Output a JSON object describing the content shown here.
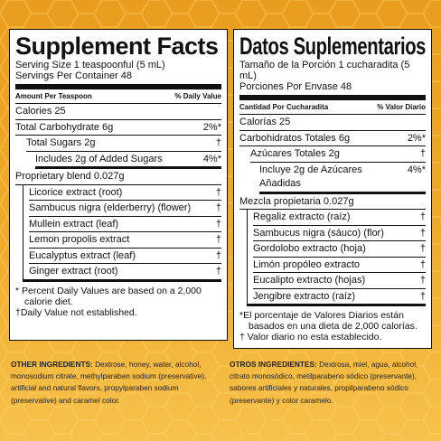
{
  "panels": [
    {
      "title": "Supplement Facts",
      "serving_size": "Serving Size 1 teaspoonful (5 mL)",
      "servings": "Servings Per Container 48",
      "header_left": "Amount Per Teaspoon",
      "header_right": "% Daily Value",
      "rows": [
        {
          "label": "Calories 25"
        },
        {
          "label": "Total Carbohydrate 6g",
          "dv": "2%*"
        },
        {
          "label": "Total Sugars 2g",
          "dv": "†"
        },
        {
          "label": "Includes 2g of Added Sugars",
          "dv": "4%*"
        }
      ],
      "blend": "Proprietary blend 0.027g",
      "blend_items": [
        {
          "label": "Licorice extract (root)",
          "dv": "†"
        },
        {
          "label": "Sambucus nigra (elderberry) (flower)",
          "dv": "†"
        },
        {
          "label": "Mullein extract (leaf)",
          "dv": "†"
        },
        {
          "label": "Lemon propolis extract",
          "dv": "†"
        },
        {
          "label": "Eucalyptus extract (leaf)",
          "dv": "†"
        },
        {
          "label": "Ginger extract (root)",
          "dv": "†"
        }
      ],
      "footnotes": [
        "* Percent Daily Values are based on a 2,000 calorie diet.",
        "†Daily Value not established."
      ]
    },
    {
      "title": "Datos Suplementarios",
      "serving_size": "Tamaño de la Porción 1 cucharadita (5 mL)",
      "servings": "Porciones Por Envase 48",
      "header_left": "Cantidad Por Cucharadita",
      "header_right": "% Valor Diario",
      "rows": [
        {
          "label": "Calorías 25"
        },
        {
          "label": "Carbohidratos Totales 6g",
          "dv": "2%*"
        },
        {
          "label": "Azúcares Totales 2g",
          "dv": "†"
        },
        {
          "label": "Incluye 2g de Azúcares Añadidas",
          "dv": "4%*"
        }
      ],
      "blend": "Mezcla propietaria  0.027g",
      "blend_items": [
        {
          "label": "Regaliz extracto (raíz)",
          "dv": "†"
        },
        {
          "label": "Sambucus nigra (sáuco) (flor)",
          "dv": "†"
        },
        {
          "label": "Gordolobo extracto (hoja)",
          "dv": "†"
        },
        {
          "label": "Limón propóleo extracto",
          "dv": "†"
        },
        {
          "label": "Eucalipto extracto (hojas)",
          "dv": "†"
        },
        {
          "label": "Jengibre extracto (raíz)",
          "dv": "†"
        }
      ],
      "footnotes": [
        "*El porcentaje de Valores Diarios están basados en una dieta de 2,000 calorías.",
        "† Valor diario no esta establecido."
      ]
    }
  ],
  "ingredients": [
    {
      "label": "OTHER INGREDIENTS:",
      "text": "Dextrose, honey, water, alcohol, monosodium citrate, methylparaben sodium (preservative), artificial and natural flavors, propylparaben sodium (preservative) and caramel color."
    },
    {
      "label": "OTROS INGREDIENTES:",
      "text": "Dextrosa, miel, agua, alcohol, citrato monosódico, metilparabeno sódico (preservante), sabores artificiales y naturales, propilparabeno sódico (preservante) y color caramelo."
    }
  ]
}
